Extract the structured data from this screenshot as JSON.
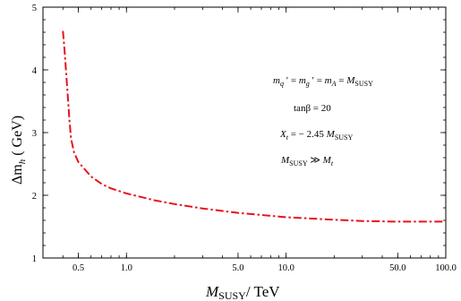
{
  "chart_data": {
    "type": "line",
    "title": "",
    "xlabel": "M_SUSY/ TeV",
    "ylabel": "Δm_h ( GeV)",
    "xscale": "log",
    "xlim": [
      0.3,
      100
    ],
    "ylim": [
      1,
      5
    ],
    "grid": false,
    "legend": "none",
    "x_ticks": [
      {
        "value": 0.5,
        "label": "0.5"
      },
      {
        "value": 1.0,
        "label": "1.0"
      },
      {
        "value": 5.0,
        "label": "5.0"
      },
      {
        "value": 10.0,
        "label": "10.0"
      },
      {
        "value": 50.0,
        "label": "50.0"
      },
      {
        "value": 100.0,
        "label": "100.0"
      }
    ],
    "y_ticks": [
      {
        "value": 1,
        "label": "1"
      },
      {
        "value": 2,
        "label": "2"
      },
      {
        "value": 3,
        "label": "3"
      },
      {
        "value": 4,
        "label": "4"
      },
      {
        "value": 5,
        "label": "5"
      }
    ],
    "series": [
      {
        "color": "#e8121c",
        "style": "dash-dot",
        "points": [
          {
            "x": 0.4,
            "y": 4.62
          },
          {
            "x": 0.41,
            "y": 4.3
          },
          {
            "x": 0.42,
            "y": 3.92
          },
          {
            "x": 0.43,
            "y": 3.55
          },
          {
            "x": 0.44,
            "y": 3.18
          },
          {
            "x": 0.45,
            "y": 2.9
          },
          {
            "x": 0.47,
            "y": 2.68
          },
          {
            "x": 0.5,
            "y": 2.53
          },
          {
            "x": 0.6,
            "y": 2.3
          },
          {
            "x": 0.7,
            "y": 2.18
          },
          {
            "x": 0.8,
            "y": 2.11
          },
          {
            "x": 1.0,
            "y": 2.03
          },
          {
            "x": 1.5,
            "y": 1.92
          },
          {
            "x": 2.0,
            "y": 1.86
          },
          {
            "x": 3.0,
            "y": 1.79
          },
          {
            "x": 5.0,
            "y": 1.72
          },
          {
            "x": 10.0,
            "y": 1.65
          },
          {
            "x": 20.0,
            "y": 1.61
          },
          {
            "x": 30.0,
            "y": 1.59
          },
          {
            "x": 50.0,
            "y": 1.58
          },
          {
            "x": 100.0,
            "y": 1.58
          }
        ]
      }
    ],
    "annotations": [
      {
        "id": "mass-relation",
        "text": "m_q' = m_g' = m_A = M_SUSY"
      },
      {
        "id": "tanbeta",
        "text": "tanβ = 20"
      },
      {
        "id": "xt",
        "text": "X_t = − 2.45  M_SUSY"
      },
      {
        "id": "hierarchy",
        "text": "M_SUSY ≫ M_t"
      }
    ]
  },
  "text": {
    "xlabel_main": "M",
    "xlabel_sub": "SUSY",
    "xlabel_tail": "/ TeV",
    "ylabel_main": "Δm",
    "ylabel_sub": "h",
    "ylabel_tail": " ( GeV)",
    "annot1_m1": "m",
    "annot1_q": "q",
    "annot1_eq1": " ′ = ",
    "annot1_m2": "m",
    "annot1_g": "g",
    "annot1_eq2": " ′ = ",
    "annot1_m3": "m",
    "annot1_A": "A",
    "annot1_eq3": " = ",
    "annot1_M": "M",
    "annot1_susy": "SUSY",
    "annot2": "tanβ = 20",
    "annot3_X": "X",
    "annot3_t": "t",
    "annot3_rest": " = − 2.45  ",
    "annot3_M": "M",
    "annot3_susy": "SUSY",
    "annot4_M": "M",
    "annot4_susy": "SUSY",
    "annot4_gg": " ≫ ",
    "annot4_Mt": "M",
    "annot4_t": "t"
  }
}
